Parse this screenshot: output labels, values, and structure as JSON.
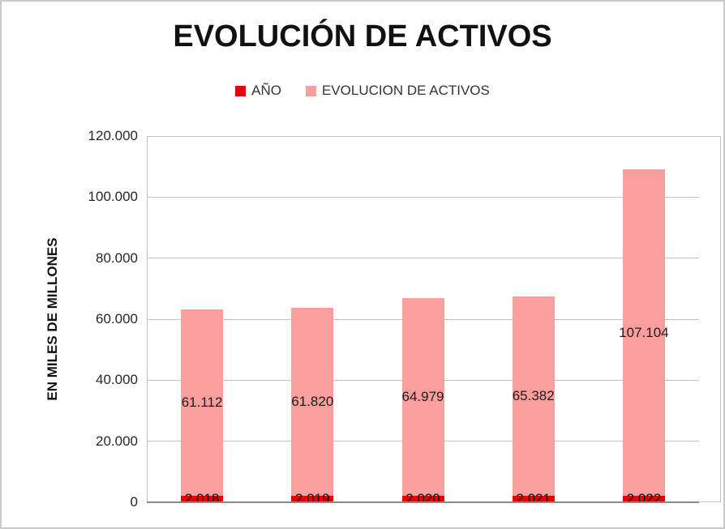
{
  "chart_data": {
    "type": "bar",
    "stacked": true,
    "title": "EVOLUCIÓN DE ACTIVOS",
    "ylabel": "EN MILES DE MILLONES",
    "xlabel": "",
    "ylim": [
      0,
      120000
    ],
    "grid": true,
    "legend_position": "top",
    "categories": [
      "2.018",
      "2.019",
      "2.020",
      "2.021",
      "2.022"
    ],
    "series": [
      {
        "name": "AÑO",
        "color": "#e60000",
        "values": [
          2018,
          2019,
          2020,
          2021,
          2022
        ],
        "labels": [
          "2.018",
          "2.019",
          "2.020",
          "2.021",
          "2.022"
        ]
      },
      {
        "name": "EVOLUCION DE ACTIVOS",
        "color": "#fa9d9d",
        "values": [
          61112,
          61820,
          64979,
          65382,
          107104
        ],
        "labels": [
          "61.112",
          "61.820",
          "64.979",
          "65.382",
          "107.104"
        ]
      }
    ],
    "yticks": {
      "values": [
        0,
        20000,
        40000,
        60000,
        80000,
        100000,
        120000
      ],
      "labels": [
        "0",
        "20.000",
        "40.000",
        "60.000",
        "80.000",
        "100.000",
        "120.000"
      ]
    }
  },
  "colors": {
    "grid": "#c3c3c3",
    "axis": "#8a8a8a",
    "frame": "#c9c9c9",
    "text": "#262626"
  }
}
